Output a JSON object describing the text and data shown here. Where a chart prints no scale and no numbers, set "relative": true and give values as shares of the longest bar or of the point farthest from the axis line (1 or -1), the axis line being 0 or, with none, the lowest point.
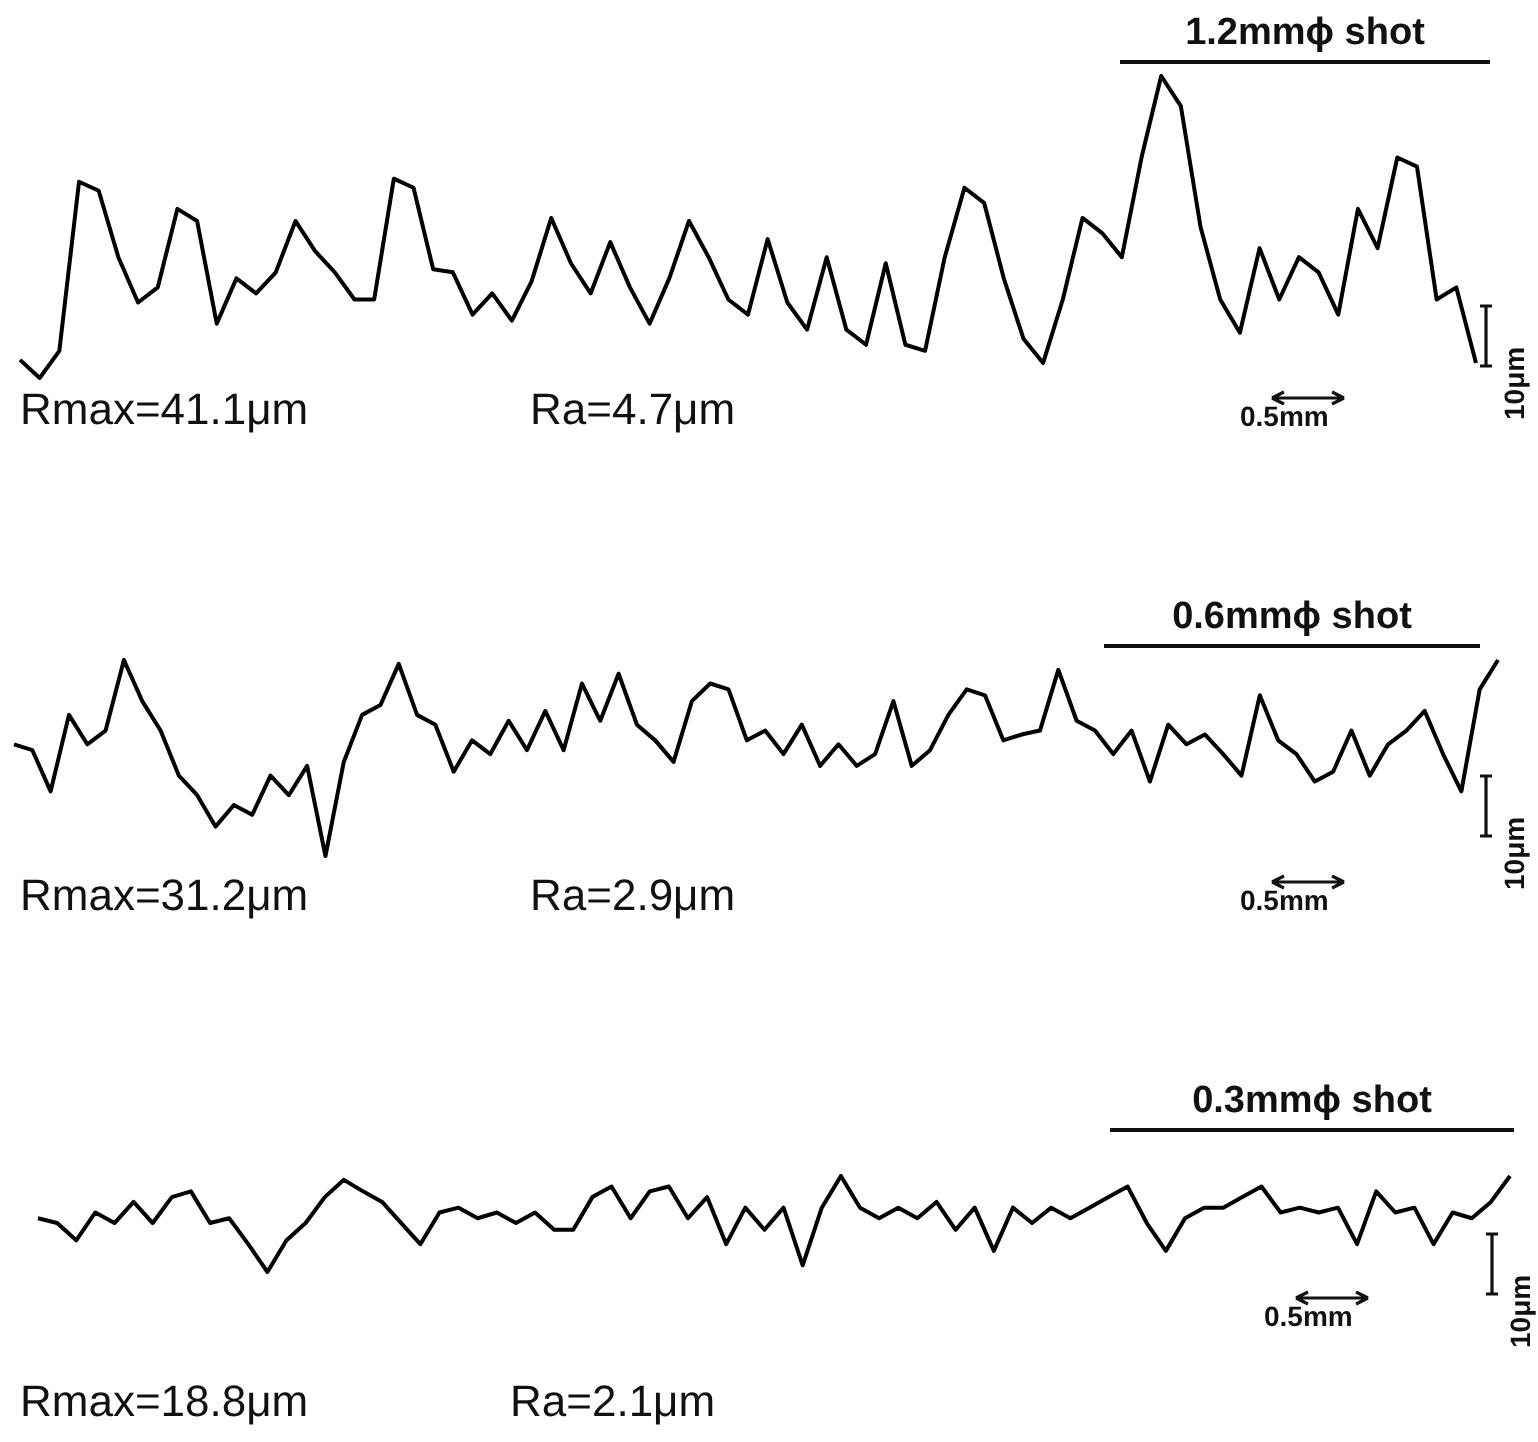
{
  "chart_data": [
    {
      "type": "line",
      "relative": true,
      "title": "1.2mmϕ shot",
      "color": "#000000",
      "categories": [
        null,
        null,
        null,
        null,
        null,
        null,
        null,
        null,
        null,
        null,
        null,
        null,
        null,
        null,
        null,
        null,
        null,
        null,
        null,
        null,
        null,
        null,
        null,
        null,
        null,
        null,
        null,
        null,
        null,
        null,
        null,
        null,
        null,
        null,
        null,
        null,
        null,
        null,
        null,
        null,
        null,
        null,
        null,
        null,
        null,
        null,
        null,
        null,
        null,
        null,
        null,
        null,
        null,
        null,
        null,
        null,
        null,
        null,
        null,
        null,
        null,
        null,
        null,
        null,
        null,
        null,
        null,
        null,
        null,
        null,
        null,
        null,
        null,
        null,
        null
      ],
      "values": [
        0.06,
        0,
        0.09,
        0.65,
        0.62,
        0.4,
        0.25,
        0.3,
        0.56,
        0.52,
        0.18,
        0.33,
        0.28,
        0.35,
        0.52,
        0.42,
        0.35,
        0.26,
        0.26,
        0.66,
        0.63,
        0.36,
        0.35,
        0.21,
        0.28,
        0.19,
        0.32,
        0.53,
        0.38,
        0.28,
        0.45,
        0.3,
        0.18,
        0.33,
        0.52,
        0.4,
        0.26,
        0.21,
        0.46,
        0.25,
        0.16,
        0.4,
        0.16,
        0.11,
        0.38,
        0.11,
        0.09,
        0.4,
        0.63,
        0.58,
        0.33,
        0.13,
        0.05,
        0.26,
        0.53,
        0.48,
        0.4,
        0.73,
        1,
        0.9,
        0.5,
        0.26,
        0.15,
        0.43,
        0.26,
        0.4,
        0.35,
        0.21,
        0.56,
        0.43,
        0.73,
        0.7,
        0.26,
        0.3,
        0.05
      ],
      "annotations": [
        "Rmax=41.1μm",
        "Ra=4.7μm",
        "0.5mm",
        "10μm"
      ]
    },
    {
      "type": "line",
      "relative": true,
      "title": "0.6mmϕ shot",
      "color": "#000000",
      "categories": [
        null,
        null,
        null,
        null,
        null,
        null,
        null,
        null,
        null,
        null,
        null,
        null,
        null,
        null,
        null,
        null,
        null,
        null,
        null,
        null,
        null,
        null,
        null,
        null,
        null,
        null,
        null,
        null,
        null,
        null,
        null,
        null,
        null,
        null,
        null,
        null,
        null,
        null,
        null,
        null,
        null,
        null,
        null,
        null,
        null,
        null,
        null,
        null,
        null,
        null,
        null,
        null,
        null,
        null,
        null,
        null,
        null,
        null,
        null,
        null,
        null,
        null,
        null,
        null,
        null,
        null,
        null,
        null,
        null,
        null,
        null,
        null,
        null,
        null,
        null,
        null,
        null,
        null,
        null,
        null,
        null,
        null
      ],
      "values": [
        0.57,
        0.54,
        0.33,
        0.72,
        0.57,
        0.64,
        1,
        0.79,
        0.64,
        0.41,
        0.31,
        0.15,
        0.26,
        0.21,
        0.41,
        0.31,
        0.46,
        0,
        0.48,
        0.72,
        0.77,
        0.98,
        0.72,
        0.67,
        0.43,
        0.59,
        0.52,
        0.69,
        0.54,
        0.74,
        0.54,
        0.88,
        0.69,
        0.93,
        0.67,
        0.59,
        0.48,
        0.79,
        0.88,
        0.85,
        0.59,
        0.64,
        0.52,
        0.67,
        0.46,
        0.57,
        0.46,
        0.52,
        0.79,
        0.46,
        0.54,
        0.72,
        0.85,
        0.82,
        0.59,
        0.62,
        0.64,
        0.95,
        0.69,
        0.64,
        0.52,
        0.64,
        0.38,
        0.67,
        0.57,
        0.62,
        0.52,
        0.41,
        0.82,
        0.59,
        0.52,
        0.38,
        0.43,
        0.64,
        0.41,
        0.57,
        0.64,
        0.74,
        0.52,
        0.33,
        0.85,
        1
      ],
      "annotations": [
        "Rmax=31.2μm",
        "Ra=2.9μm",
        "0.5mm",
        "10μm"
      ]
    },
    {
      "type": "line",
      "relative": true,
      "title": "0.3mmϕ shot",
      "color": "#000000",
      "categories": [
        null,
        null,
        null,
        null,
        null,
        null,
        null,
        null,
        null,
        null,
        null,
        null,
        null,
        null,
        null,
        null,
        null,
        null,
        null,
        null,
        null,
        null,
        null,
        null,
        null,
        null,
        null,
        null,
        null,
        null,
        null,
        null,
        null,
        null,
        null,
        null,
        null,
        null,
        null,
        null,
        null,
        null,
        null,
        null,
        null,
        null,
        null,
        null,
        null,
        null,
        null,
        null,
        null,
        null,
        null,
        null,
        null,
        null,
        null,
        null,
        null,
        null,
        null,
        null,
        null,
        null,
        null,
        null,
        null,
        null,
        null,
        null,
        null,
        null,
        null,
        null,
        null,
        null
      ],
      "values": [
        0.56,
        0.51,
        0.33,
        0.62,
        0.51,
        0.73,
        0.51,
        0.78,
        0.84,
        0.51,
        0.56,
        0.29,
        0,
        0.33,
        0.51,
        0.78,
        0.96,
        0.84,
        0.73,
        0.51,
        0.29,
        0.62,
        0.67,
        0.56,
        0.62,
        0.51,
        0.62,
        0.44,
        0.44,
        0.78,
        0.89,
        0.56,
        0.84,
        0.89,
        0.56,
        0.78,
        0.29,
        0.67,
        0.44,
        0.67,
        0.07,
        0.67,
        1,
        0.67,
        0.56,
        0.67,
        0.56,
        0.73,
        0.44,
        0.67,
        0.22,
        0.67,
        0.51,
        0.67,
        0.56,
        0.67,
        0.78,
        0.89,
        0.51,
        0.22,
        0.56,
        0.67,
        0.67,
        0.78,
        0.89,
        0.62,
        0.67,
        0.62,
        0.67,
        0.29,
        0.84,
        0.62,
        0.67,
        0.29,
        0.62,
        0.56,
        0.73,
        1
      ],
      "annotations": [
        "Rmax=18.8μm",
        "Ra=2.1μm",
        "0.5mm",
        "10μm"
      ]
    }
  ]
}
